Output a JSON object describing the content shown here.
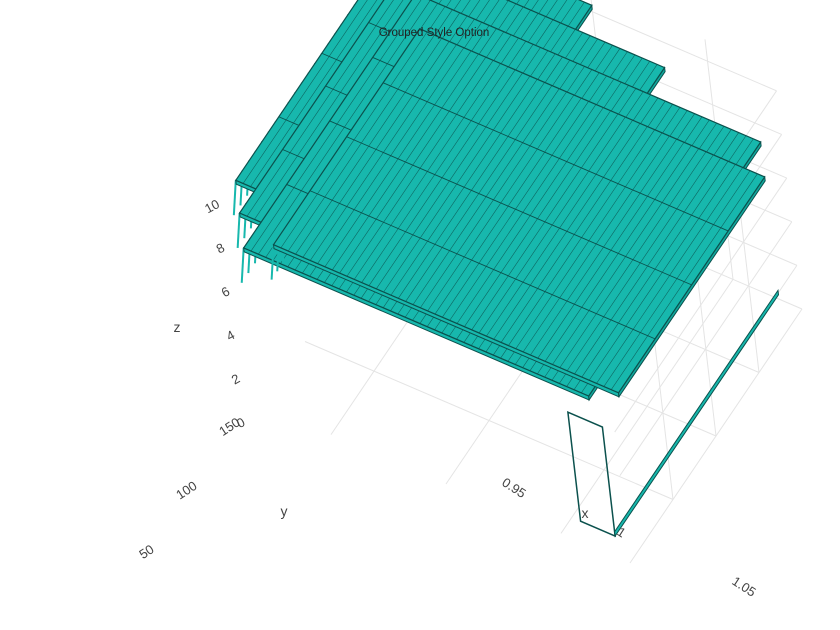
{
  "chart_data": {
    "type": "bar3d",
    "title": "Grouped Style Option",
    "mode": "grouped",
    "bar_color": "#17b8ad",
    "bar_edge_color": "#0b514d",
    "xlabel": "x",
    "ylabel": "y",
    "zlabel": "z",
    "x_ticks": [
      "0.95",
      "1",
      "1.05"
    ],
    "y_ticks": [
      "50",
      "100",
      "150"
    ],
    "z_ticks": [
      "0",
      "2",
      "4",
      "6",
      "8",
      "10"
    ],
    "xlim": [
      0.92,
      1.08
    ],
    "ylim": [
      0,
      200
    ],
    "zlim": [
      0,
      11
    ],
    "grid": true,
    "series": [
      {
        "layer": 1,
        "x_range": [
          0.92,
          1.0
        ],
        "y_range": [
          0,
          200
        ],
        "z": 10.3
      },
      {
        "layer": 2,
        "x_range": [
          0.92,
          1.03
        ],
        "y_range": [
          0,
          200
        ],
        "z": 8.8
      },
      {
        "layer": 3,
        "x_range": [
          0.92,
          1.07
        ],
        "y_range": [
          0,
          200
        ],
        "z": 7.2
      },
      {
        "layer": 4,
        "x_range": [
          0.92,
          1.07
        ],
        "y_range": [
          30,
          200
        ],
        "z": 5.6
      }
    ]
  }
}
